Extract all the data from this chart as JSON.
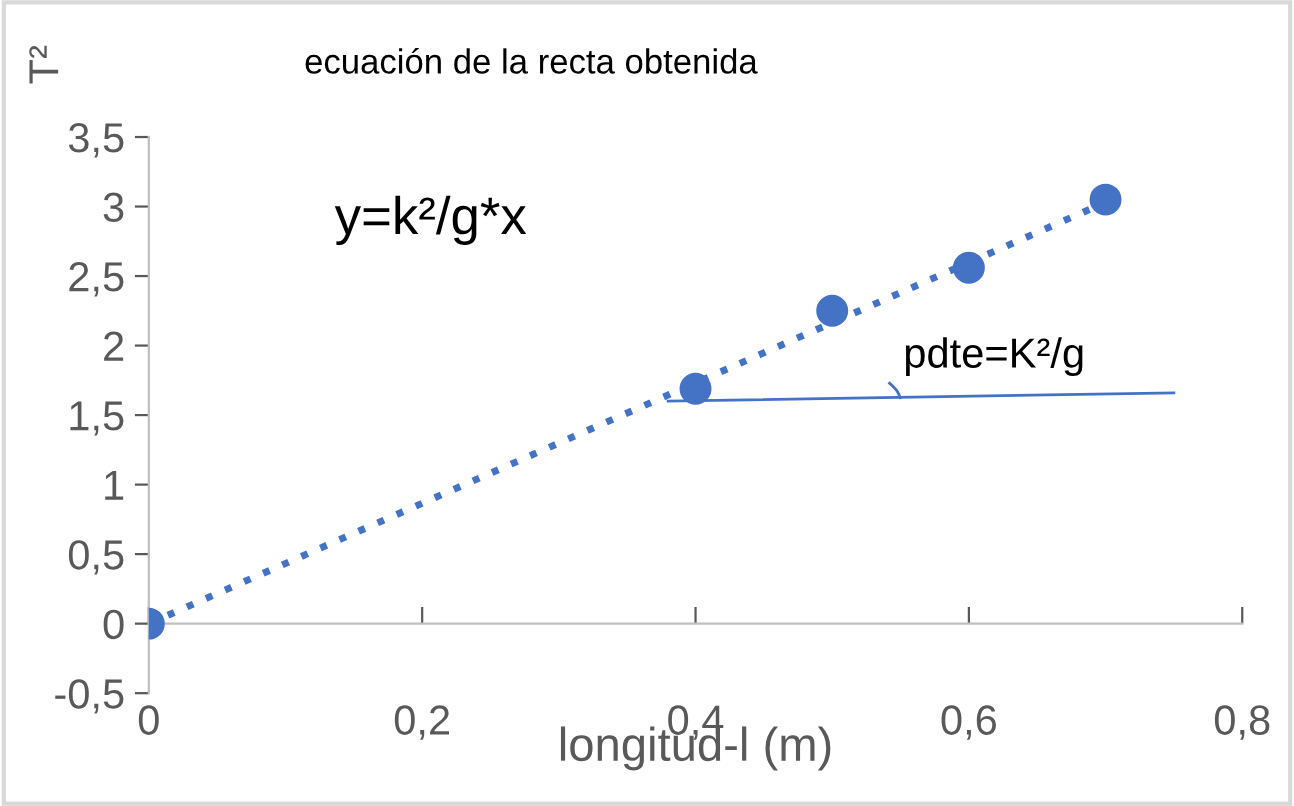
{
  "chart_data": {
    "type": "scatter",
    "title": "ecuación de la recta obtenida",
    "xlabel": "longitud-l (m)",
    "ylabel": "T²",
    "annotations": [
      "y=k²/g*x",
      "pdte=K²/g"
    ],
    "series": [
      {
        "color": "#4472c4",
        "x": [
          0,
          0.4,
          0.5,
          0.6,
          0.7
        ],
        "values": [
          0,
          1.69,
          2.25,
          2.56,
          3.05
        ],
        "marker": "circle"
      },
      {
        "type": "line",
        "color": "#4472c4",
        "x": [
          0,
          0.7
        ],
        "values": [
          0,
          3.03
        ],
        "line_style": "dotted"
      },
      {
        "type": "line",
        "color": "#4472c4",
        "x": [
          0.38,
          0.75
        ],
        "values": [
          1.6,
          1.66
        ],
        "line_style": "solid"
      }
    ],
    "xlim": [
      0,
      0.8
    ],
    "xticks": [
      0,
      {
        "value": 0.2,
        "label": "0,2"
      },
      {
        "value": 0.4,
        "label": "0,4"
      },
      {
        "value": 0.6,
        "label": "0,6"
      },
      {
        "value": 0.8,
        "label": "0,8"
      }
    ],
    "ylim": [
      -0.5,
      3.5
    ],
    "yticks": [
      {
        "value": -0.5,
        "label": "-0,5"
      },
      0,
      {
        "value": 0.5,
        "label": "0,5"
      },
      1,
      {
        "value": 1.5,
        "label": "1,5"
      },
      2,
      {
        "value": 2.5,
        "label": "2,5"
      },
      3,
      {
        "value": 3.5,
        "label": "3,5"
      }
    ],
    "grid": false,
    "legend": false
  }
}
